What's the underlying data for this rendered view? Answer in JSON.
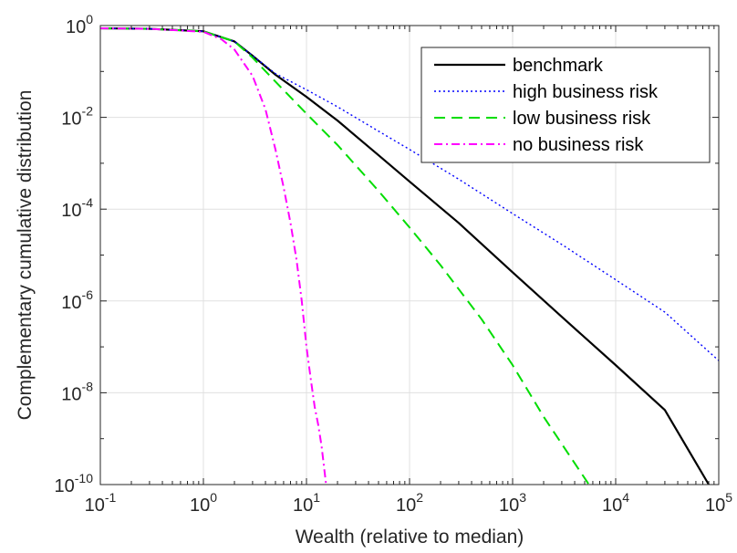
{
  "chart_data": {
    "type": "line",
    "title": "",
    "xlabel": "Wealth (relative to median)",
    "ylabel": "Complementary cumulative distribution",
    "xscale": "log",
    "yscale": "log",
    "xlim": [
      0.1,
      100000
    ],
    "ylim": [
      1e-10,
      1
    ],
    "grid": true,
    "legend_position": "top-right",
    "x_ticks": [
      {
        "base": "10",
        "exp": "-1"
      },
      {
        "base": "10",
        "exp": "0"
      },
      {
        "base": "10",
        "exp": "1"
      },
      {
        "base": "10",
        "exp": "2"
      },
      {
        "base": "10",
        "exp": "3"
      },
      {
        "base": "10",
        "exp": "4"
      },
      {
        "base": "10",
        "exp": "5"
      }
    ],
    "y_ticks": [
      {
        "base": "10",
        "exp": "-10"
      },
      {
        "base": "10",
        "exp": "-8"
      },
      {
        "base": "10",
        "exp": "-6"
      },
      {
        "base": "10",
        "exp": "-4"
      },
      {
        "base": "10",
        "exp": "-2"
      },
      {
        "base": "10",
        "exp": "0"
      }
    ],
    "series": [
      {
        "name": "benchmark",
        "color": "#000000",
        "dash": "solid",
        "x": [
          0.1,
          0.3,
          1,
          2,
          3,
          5,
          10,
          20,
          50,
          100,
          300,
          1000,
          3000,
          10000,
          30000,
          80000
        ],
        "y": [
          0.87,
          0.85,
          0.75,
          0.45,
          0.22,
          0.085,
          0.028,
          0.0085,
          0.0015,
          0.0004,
          5e-05,
          4.2e-06,
          4.5e-07,
          4e-08,
          4.2e-09,
          1e-10
        ]
      },
      {
        "name": "high business risk",
        "color": "#0000ff",
        "dash": "dotted",
        "x": [
          0.1,
          0.3,
          1,
          2,
          3,
          5,
          10,
          20,
          50,
          100,
          300,
          1000,
          3000,
          10000,
          30000,
          100000
        ],
        "y": [
          0.87,
          0.85,
          0.75,
          0.45,
          0.22,
          0.09,
          0.04,
          0.017,
          0.005,
          0.002,
          0.00045,
          8e-05,
          1.7e-05,
          2.9e-06,
          5.7e-07,
          5e-08
        ]
      },
      {
        "name": "low business risk",
        "color": "#00dd00",
        "dash": "dashed",
        "x": [
          0.1,
          0.3,
          1,
          2,
          3,
          5,
          10,
          20,
          50,
          100,
          200,
          500,
          1000,
          2000,
          5500
        ],
        "y": [
          0.87,
          0.85,
          0.75,
          0.45,
          0.2,
          0.06,
          0.012,
          0.0025,
          0.00025,
          4e-05,
          6e-06,
          4e-07,
          4e-08,
          3e-09,
          1e-10
        ]
      },
      {
        "name": "no business risk",
        "color": "#ff00ff",
        "dash": "dashdot",
        "x": [
          0.1,
          0.3,
          1,
          1.5,
          2,
          3,
          4,
          5,
          6,
          7,
          8,
          9,
          10,
          11,
          12,
          13,
          14,
          15.5
        ],
        "y": [
          0.87,
          0.85,
          0.73,
          0.5,
          0.3,
          0.08,
          0.015,
          0.002,
          0.0003,
          5e-05,
          8e-06,
          1e-06,
          1e-07,
          2e-08,
          5e-09,
          2e-09,
          7e-10,
          1e-10
        ]
      }
    ]
  }
}
